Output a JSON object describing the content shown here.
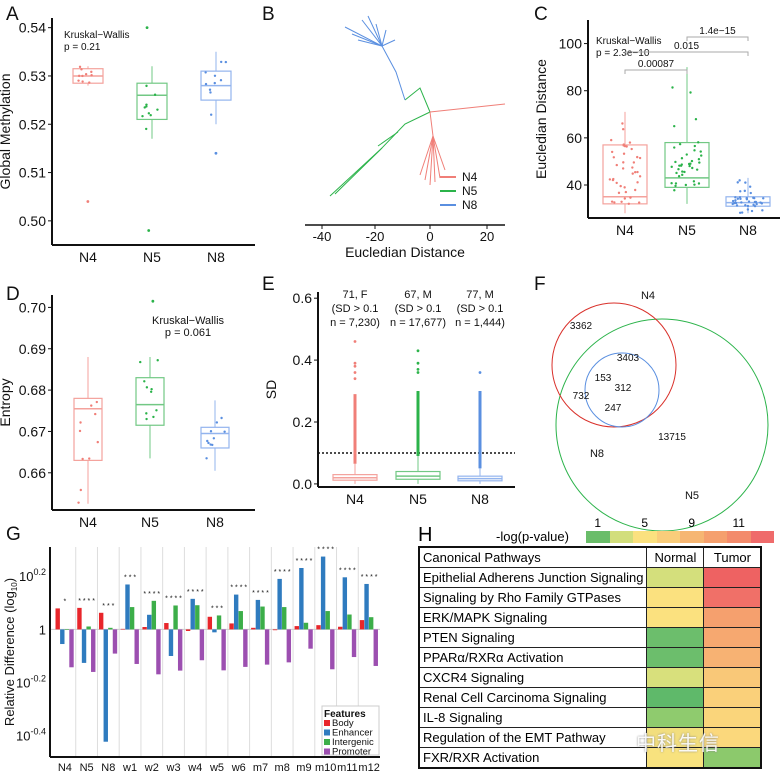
{
  "palette": {
    "N4": "#f07f78",
    "N5": "#2bb34a",
    "N8": "#5a8fe0"
  },
  "chart_data": [
    {
      "panel": "A",
      "type": "box",
      "ylabel": "Global Methylation",
      "ylim": [
        0.495,
        0.542
      ],
      "yticks": [
        "0.50",
        "0.51",
        "0.52",
        "0.53",
        "0.54"
      ],
      "annotation": [
        "Kruskal−Wallis",
        "p = 0.21"
      ],
      "groups": [
        {
          "name": "N4",
          "lo": 0.528,
          "q1": 0.5285,
          "med": 0.53,
          "q3": 0.5315,
          "hi": 0.532,
          "outliers": [
            0.504
          ],
          "n": 10
        },
        {
          "name": "N5",
          "lo": 0.517,
          "q1": 0.521,
          "med": 0.526,
          "q3": 0.5285,
          "hi": 0.532,
          "outliers": [
            0.498,
            0.54
          ],
          "n": 10
        },
        {
          "name": "N8",
          "lo": 0.52,
          "q1": 0.525,
          "med": 0.528,
          "q3": 0.531,
          "hi": 0.535,
          "outliers": [
            0.514
          ],
          "n": 10
        }
      ]
    },
    {
      "panel": "B",
      "type": "tree",
      "xlabel": "Eucledian Distance",
      "xticks": [
        "-40",
        "-20",
        "0",
        "20"
      ],
      "legend": [
        "N4",
        "N5",
        "N8"
      ]
    },
    {
      "panel": "C",
      "type": "box",
      "ylabel": "Eucledian Distance",
      "ylim": [
        26,
        110
      ],
      "yticks": [
        "40",
        "60",
        "80",
        "100"
      ],
      "annotation": [
        "Kruskal−Wallis",
        "p = 2.3e−10"
      ],
      "comparisons": [
        {
          "a": "N5",
          "b": "N8",
          "p": "1.4e−15"
        },
        {
          "a": "N4",
          "b": "N8",
          "p": "0.015"
        },
        {
          "a": "N4",
          "b": "N5",
          "p": "0.00087"
        }
      ],
      "groups": [
        {
          "name": "N4",
          "lo": 28,
          "q1": 32,
          "med": 35,
          "q3": 57,
          "hi": 71,
          "outliers": [],
          "n": 40
        },
        {
          "name": "N5",
          "lo": 32,
          "q1": 39,
          "med": 43,
          "q3": 58,
          "hi": 90,
          "outliers": [],
          "n": 40
        },
        {
          "name": "N8",
          "lo": 28,
          "q1": 31,
          "med": 32.5,
          "q3": 35,
          "hi": 43,
          "outliers": [],
          "n": 40
        }
      ]
    },
    {
      "panel": "D",
      "type": "box",
      "ylabel": "Entropy",
      "ylim": [
        0.651,
        0.703
      ],
      "yticks": [
        "0.66",
        "0.67",
        "0.68",
        "0.69",
        "0.70"
      ],
      "annotation": [
        "Kruskal−Wallis",
        "p = 0.061"
      ],
      "groups": [
        {
          "name": "N4",
          "lo": 0.6525,
          "q1": 0.663,
          "med": 0.6755,
          "q3": 0.678,
          "hi": 0.688,
          "outliers": [],
          "n": 10
        },
        {
          "name": "N5",
          "lo": 0.6635,
          "q1": 0.6715,
          "med": 0.6765,
          "q3": 0.683,
          "hi": 0.688,
          "outliers": [
            0.7015
          ],
          "n": 10
        },
        {
          "name": "N8",
          "lo": 0.6605,
          "q1": 0.666,
          "med": 0.6695,
          "q3": 0.671,
          "hi": 0.6775,
          "outliers": [],
          "n": 10
        }
      ]
    },
    {
      "panel": "E",
      "type": "box",
      "ylabel": "SD",
      "ylim": [
        -0.01,
        0.62
      ],
      "yticks": [
        "0.0",
        "0.2",
        "0.4",
        "0.6"
      ],
      "threshold": 0.1,
      "groups": [
        {
          "name": "N4",
          "lo": 0.0,
          "q1": 0.012,
          "med": 0.02,
          "q3": 0.03,
          "hi": 0.065,
          "dense_to": 0.29,
          "outliers": [
            0.34,
            0.36,
            0.38,
            0.39,
            0.46
          ],
          "info": [
            "71, F",
            "(SD > 0.1",
            "n = 7,230)"
          ]
        },
        {
          "name": "N5",
          "lo": 0.0,
          "q1": 0.015,
          "med": 0.025,
          "q3": 0.04,
          "hi": 0.09,
          "dense_to": 0.3,
          "outliers": [
            0.36,
            0.37,
            0.39,
            0.43
          ],
          "info": [
            "67, M",
            "(SD > 0.1",
            "n = 17,677)"
          ]
        },
        {
          "name": "N8",
          "lo": 0.0,
          "q1": 0.01,
          "med": 0.017,
          "q3": 0.025,
          "hi": 0.05,
          "dense_to": 0.3,
          "outliers": [
            0.36
          ],
          "info": [
            "77, M",
            "(SD > 0.1",
            "n = 1,444)"
          ]
        }
      ]
    },
    {
      "panel": "F",
      "type": "venn",
      "sets": [
        "N4",
        "N5",
        "N8"
      ],
      "regions": {
        "N4_only": "3362",
        "N4_N5": "3403",
        "N4_N8": "153",
        "N4_N5_N8": "312",
        "N8_only": "732",
        "N5_N8": "247",
        "N5_only": "13715"
      }
    },
    {
      "panel": "G",
      "type": "bar",
      "ylabel": "Relative Difference (log",
      "ylabel_sub": "10",
      "ylabel_end": ")",
      "yscale": "log10",
      "ylim_exponent": [
        -0.48,
        0.31
      ],
      "yticks": [
        {
          "base": "10",
          "exp": "0.2",
          "v": 0.2
        },
        {
          "base": "1",
          "exp": "",
          "v": 0
        },
        {
          "base": "10",
          "exp": "-0.2",
          "v": -0.2
        },
        {
          "base": "10",
          "exp": "-0.4",
          "v": -0.4
        }
      ],
      "categories": [
        "N4",
        "N5",
        "N8",
        "w1",
        "w2",
        "w3",
        "w4",
        "w5",
        "w6",
        "m7",
        "m8",
        "m9",
        "m10",
        "m11",
        "m12"
      ],
      "legend_title": "Features",
      "series": [
        {
          "name": "Body",
          "color": "#e8262b",
          "values": [
            0.079,
            0.081,
            0.0625,
            0.002,
            0.009,
            0.024,
            -0.006,
            0.0475,
            0.0225,
            0.006,
            -0.003,
            0.0125,
            0.016,
            0.01,
            0.035
          ]
        },
        {
          "name": "Enhancer",
          "color": "#2f7bbf",
          "values": [
            -0.055,
            -0.126,
            -0.4225,
            0.169,
            0.055,
            -0.1,
            0.115,
            -0.011,
            0.131,
            0.111,
            0.19,
            0.231,
            0.274,
            0.196,
            0.171
          ]
        },
        {
          "name": "Intergenic",
          "color": "#3cae49",
          "values": [
            0.0,
            0.011,
            0.006,
            0.084,
            0.1075,
            0.09,
            0.091,
            0.0525,
            0.069,
            0.086,
            0.084,
            0.025,
            0.069,
            0.056,
            0.046
          ]
        },
        {
          "name": "Promoter",
          "color": "#9c4fb0",
          "values": [
            -0.1425,
            -0.16,
            -0.091,
            -0.13,
            -0.169,
            -0.155,
            -0.116,
            -0.154,
            -0.141,
            -0.1325,
            -0.124,
            -0.0725,
            -0.15,
            -0.104,
            -0.1375
          ]
        }
      ],
      "significance": [
        "*",
        "* *   * *",
        "*   * *",
        "* * *",
        "* * * *",
        "* * * *",
        "* * * *",
        "*   * *",
        "* * * *",
        "* * * *",
        "* * * *",
        "* * * *",
        "* * * *",
        "* * * *",
        "* * * *"
      ]
    },
    {
      "panel": "H",
      "type": "heatmap",
      "legend_label": "-log(p-value)",
      "legend_ticks": [
        {
          "label": "1",
          "cell": 0
        },
        {
          "label": "5",
          "cell": 2
        },
        {
          "label": "9",
          "cell": 4
        },
        {
          "label": "11",
          "cell": 6
        }
      ],
      "legend_colors": [
        "#6abd6a",
        "#d2de7c",
        "#fbe17f",
        "#f9cd7b",
        "#f6b673",
        "#f5a06e",
        "#f38b6c",
        "#ef6b6b"
      ],
      "header": [
        "Canonical Pathways",
        "Normal",
        "Tumor"
      ],
      "rows": [
        {
          "pathway": "Epithelial Adherens Junction Signaling",
          "normal": "#d4df7c",
          "tumor": "#ee6262"
        },
        {
          "pathway": "Signaling by Rho Family GTPases",
          "normal": "#fbe17f",
          "tumor": "#f07068"
        },
        {
          "pathway": "ERK/MAPK Signaling",
          "normal": "#fbe17f",
          "tumor": "#f5a06e"
        },
        {
          "pathway": "PTEN Signaling",
          "normal": "#6cbe6c",
          "tumor": "#f6a870"
        },
        {
          "pathway": "PPARα/RXRα Activation",
          "normal": "#6cbe6c",
          "tumor": "#f7b273"
        },
        {
          "pathway": "CXCR4 Signaling",
          "normal": "#d8e07c",
          "tumor": "#f9c878"
        },
        {
          "pathway": "Renal Cell Carcinoma Signaling",
          "normal": "#5fb96a",
          "tumor": "#fad07a"
        },
        {
          "pathway": "IL-8 Signaling",
          "normal": "#8fcb6e",
          "tumor": "#fad57b"
        },
        {
          "pathway": "Regulation of the EMT Pathway",
          "normal": "#f2de7e",
          "tumor": "#fbd87c"
        },
        {
          "pathway": "FXR/RXR Activation",
          "normal": "#f8e27e",
          "tumor": "#8cc96c"
        }
      ]
    }
  ],
  "panel_labels": [
    "A",
    "B",
    "C",
    "D",
    "E",
    "F",
    "G",
    "H"
  ],
  "watermark": "中科生信"
}
